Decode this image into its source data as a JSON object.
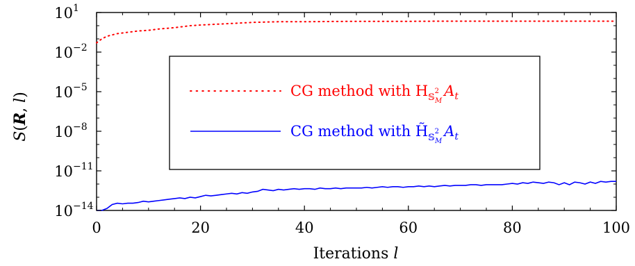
{
  "chart_data": {
    "type": "line",
    "xlabel": "Iterations l",
    "ylabel": "S(R, l)",
    "xlim": [
      0,
      100
    ],
    "ylim_exponent": [
      -14,
      1
    ],
    "yscale": "log",
    "x_ticks": [
      "0",
      "20",
      "40",
      "60",
      "80",
      "100"
    ],
    "y_ticks": [
      {
        "base": "10",
        "exp": "1"
      },
      {
        "base": "10",
        "exp": "−2"
      },
      {
        "base": "10",
        "exp": "−5"
      },
      {
        "base": "10",
        "exp": "−8"
      },
      {
        "base": "10",
        "exp": "−11"
      },
      {
        "base": "10",
        "exp": "−14"
      }
    ],
    "grid": false,
    "legend_position": "center",
    "series": [
      {
        "name": "CG method with H_{S^2_M} A_t",
        "legend_prefix": "CG method with H",
        "legend_sub": "𝕊",
        "legend_sup": "2",
        "legend_subsub": "M",
        "legend_after": "A",
        "legend_after_sub": "t",
        "color": "#ff0000",
        "style": "dotted",
        "x": [
          0,
          1,
          2,
          3,
          4,
          5,
          6,
          8,
          10,
          12,
          15,
          18,
          20,
          25,
          30,
          35,
          40,
          45,
          50,
          55,
          60,
          65,
          70,
          75,
          80,
          85,
          90,
          95,
          100
        ],
        "log10_y": [
          -1.3,
          -1.0,
          -0.8,
          -0.7,
          -0.6,
          -0.55,
          -0.5,
          -0.4,
          -0.35,
          -0.25,
          -0.15,
          0.0,
          0.05,
          0.15,
          0.25,
          0.3,
          0.3,
          0.32,
          0.33,
          0.33,
          0.33,
          0.34,
          0.34,
          0.34,
          0.34,
          0.34,
          0.34,
          0.34,
          0.34
        ]
      },
      {
        "name": "CG method with H̃_{S^2_M} A_t",
        "legend_prefix": "CG method with H̃",
        "legend_sub": "𝕊",
        "legend_sup": "2",
        "legend_subsub": "M",
        "legend_after": "A",
        "legend_after_sub": "t",
        "color": "#0000ff",
        "style": "solid",
        "x": [
          0,
          1,
          2,
          3,
          4,
          5,
          6,
          7,
          8,
          9,
          10,
          11,
          12,
          13,
          14,
          15,
          16,
          17,
          18,
          19,
          20,
          21,
          22,
          23,
          24,
          25,
          26,
          27,
          28,
          29,
          30,
          31,
          32,
          33,
          34,
          35,
          36,
          37,
          38,
          39,
          40,
          41,
          42,
          43,
          44,
          45,
          46,
          47,
          48,
          49,
          50,
          51,
          52,
          53,
          54,
          55,
          56,
          57,
          58,
          59,
          60,
          61,
          62,
          63,
          64,
          65,
          66,
          67,
          68,
          69,
          70,
          71,
          72,
          73,
          74,
          75,
          76,
          77,
          78,
          79,
          80,
          81,
          82,
          83,
          84,
          85,
          86,
          87,
          88,
          89,
          90,
          91,
          92,
          93,
          94,
          95,
          96,
          97,
          98,
          99,
          100
        ],
        "log10_y": [
          -14.0,
          -14.0,
          -13.85,
          -13.55,
          -13.45,
          -13.5,
          -13.45,
          -13.45,
          -13.4,
          -13.3,
          -13.35,
          -13.3,
          -13.25,
          -13.2,
          -13.15,
          -13.1,
          -13.05,
          -13.1,
          -13.0,
          -13.05,
          -12.95,
          -12.85,
          -12.9,
          -12.85,
          -12.8,
          -12.75,
          -12.7,
          -12.75,
          -12.65,
          -12.7,
          -12.6,
          -12.55,
          -12.4,
          -12.45,
          -12.5,
          -12.4,
          -12.45,
          -12.4,
          -12.35,
          -12.4,
          -12.35,
          -12.35,
          -12.4,
          -12.3,
          -12.35,
          -12.35,
          -12.3,
          -12.35,
          -12.3,
          -12.3,
          -12.3,
          -12.3,
          -12.25,
          -12.3,
          -12.25,
          -12.2,
          -12.25,
          -12.2,
          -12.2,
          -12.25,
          -12.2,
          -12.2,
          -12.15,
          -12.2,
          -12.15,
          -12.2,
          -12.15,
          -12.1,
          -12.15,
          -12.1,
          -12.1,
          -12.1,
          -12.05,
          -12.05,
          -12.1,
          -12.05,
          -12.05,
          -12.05,
          -12.05,
          -12.0,
          -11.95,
          -12.0,
          -11.9,
          -11.95,
          -11.85,
          -11.9,
          -11.95,
          -11.85,
          -11.9,
          -12.05,
          -11.9,
          -12.05,
          -11.85,
          -11.9,
          -12.0,
          -11.85,
          -11.95,
          -11.8,
          -11.85,
          -11.8,
          -11.8
        ]
      }
    ]
  }
}
